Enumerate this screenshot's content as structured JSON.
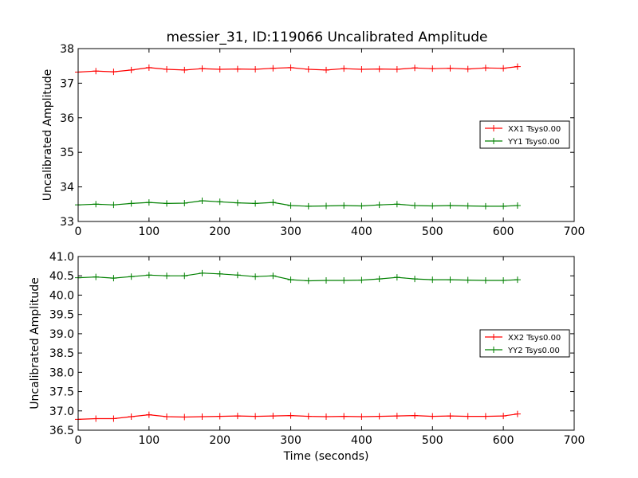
{
  "chart_data": [
    {
      "type": "line",
      "title": "messier_31, ID:119066 Uncalibrated Amplitude",
      "xlabel": "",
      "ylabel": "Uncalibrated Amplitude",
      "xlim": [
        0,
        700
      ],
      "ylim": [
        33,
        38
      ],
      "x_ticks": [
        0,
        100,
        200,
        300,
        400,
        500,
        600,
        700
      ],
      "y_ticks": [
        33,
        34,
        35,
        36,
        37,
        38
      ],
      "y_tick_format": 0,
      "grid": false,
      "legend_position": "center-right",
      "marker": "plus",
      "series": [
        {
          "name": "XX1 Tsys0.00",
          "color": "#ff0000",
          "x": [
            0,
            25,
            50,
            75,
            100,
            125,
            150,
            175,
            200,
            225,
            250,
            275,
            300,
            325,
            350,
            375,
            400,
            425,
            450,
            475,
            500,
            525,
            550,
            575,
            600,
            620
          ],
          "y": [
            37.32,
            37.35,
            37.33,
            37.38,
            37.45,
            37.4,
            37.38,
            37.42,
            37.4,
            37.41,
            37.4,
            37.43,
            37.45,
            37.4,
            37.38,
            37.42,
            37.4,
            37.41,
            37.4,
            37.44,
            37.42,
            37.43,
            37.41,
            37.44,
            37.43,
            37.48
          ]
        },
        {
          "name": "YY1 Tsys0.00",
          "color": "#008000",
          "x": [
            0,
            25,
            50,
            75,
            100,
            125,
            150,
            175,
            200,
            225,
            250,
            275,
            300,
            325,
            350,
            375,
            400,
            425,
            450,
            475,
            500,
            525,
            550,
            575,
            600,
            620
          ],
          "y": [
            33.48,
            33.5,
            33.48,
            33.52,
            33.55,
            33.52,
            33.53,
            33.6,
            33.57,
            33.54,
            33.52,
            33.55,
            33.46,
            33.44,
            33.45,
            33.46,
            33.45,
            33.48,
            33.5,
            33.46,
            33.45,
            33.46,
            33.45,
            33.44,
            33.44,
            33.46
          ]
        }
      ]
    },
    {
      "type": "line",
      "title": "",
      "xlabel": "Time (seconds)",
      "ylabel": "Uncalibrated Amplitude",
      "xlim": [
        0,
        700
      ],
      "ylim": [
        36.5,
        41.0
      ],
      "x_ticks": [
        0,
        100,
        200,
        300,
        400,
        500,
        600,
        700
      ],
      "y_ticks": [
        36.5,
        37.0,
        37.5,
        38.0,
        38.5,
        39.0,
        39.5,
        40.0,
        40.5,
        41.0
      ],
      "y_tick_format": 1,
      "grid": false,
      "legend_position": "center-right",
      "marker": "plus",
      "series": [
        {
          "name": "XX2 Tsys0.00",
          "color": "#ff0000",
          "x": [
            0,
            25,
            50,
            75,
            100,
            125,
            150,
            175,
            200,
            225,
            250,
            275,
            300,
            325,
            350,
            375,
            400,
            425,
            450,
            475,
            500,
            525,
            550,
            575,
            600,
            620
          ],
          "y": [
            36.78,
            36.8,
            36.8,
            36.85,
            36.9,
            36.85,
            36.84,
            36.85,
            36.86,
            36.87,
            36.86,
            36.87,
            36.88,
            36.86,
            36.85,
            36.86,
            36.85,
            36.86,
            36.87,
            36.88,
            36.86,
            36.87,
            36.86,
            36.86,
            36.87,
            36.92
          ]
        },
        {
          "name": "YY2 Tsys0.00",
          "color": "#008000",
          "x": [
            0,
            25,
            50,
            75,
            100,
            125,
            150,
            175,
            200,
            225,
            250,
            275,
            300,
            325,
            350,
            375,
            400,
            425,
            450,
            475,
            500,
            525,
            550,
            575,
            600,
            620
          ],
          "y": [
            40.45,
            40.47,
            40.44,
            40.48,
            40.52,
            40.5,
            40.5,
            40.57,
            40.55,
            40.52,
            40.48,
            40.5,
            40.4,
            40.37,
            40.38,
            40.38,
            40.39,
            40.42,
            40.46,
            40.42,
            40.4,
            40.4,
            40.39,
            40.38,
            40.38,
            40.4
          ]
        }
      ]
    }
  ]
}
